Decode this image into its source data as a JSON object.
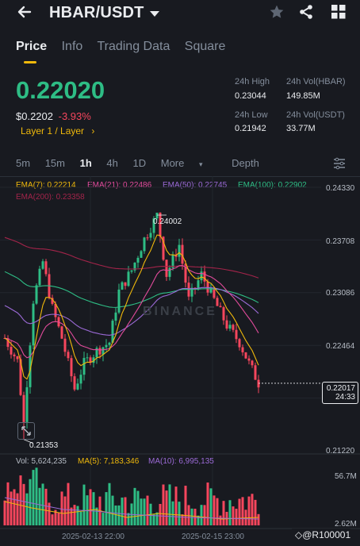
{
  "header": {
    "pair": "HBAR/USDT",
    "back_icon": "back-arrow-icon",
    "dropdown_icon": "caret-down-icon",
    "star_icon": "star-icon",
    "share_icon": "share-icon",
    "grid_icon": "grid-icon"
  },
  "tabs": [
    "Price",
    "Info",
    "Trading Data",
    "Square"
  ],
  "ticker": {
    "last_price": "0.22020",
    "usd_price": "$0.2202",
    "change": "-3.93%",
    "tag": "Layer 1 / Layer",
    "high_label": "24h High",
    "high": "0.23044",
    "low_label": "24h Low",
    "low": "0.21942",
    "vol_hbar_label": "24h Vol(HBAR)",
    "vol_hbar": "149.85M",
    "vol_usdt_label": "24h Vol(USDT)",
    "vol_usdt": "33.77M"
  },
  "timeframes": [
    "5m",
    "15m",
    "1h",
    "4h",
    "1D",
    "More",
    "Depth"
  ],
  "selected_timeframe": "1h",
  "ema_labels": {
    "ema7": "EMA(7): 0.22214",
    "ema21": "EMA(21): 0.22486",
    "ema50": "EMA(50): 0.22745",
    "ema100": "EMA(100): 0.22902",
    "ema200": "EMA(200): 0.23358"
  },
  "price_axis": [
    "0.24330",
    "0.23708",
    "0.23086",
    "0.22464",
    "0.21220"
  ],
  "current_price_tag": {
    "price": "0.22017",
    "countdown": "24:33"
  },
  "annotations": {
    "high": "0.24002",
    "low": "0.21353"
  },
  "volume": {
    "vol": "Vol: 5,624,235",
    "ma5": "MA(5): 7,183,346",
    "ma10": "MA(10): 6,995,135",
    "max": "56.7M",
    "min": "2.62M"
  },
  "dates": [
    "2025-02-13 22:00",
    "2025-02-15 23:00"
  ],
  "watermark": "BINANCE",
  "footer_tag": "@R100001",
  "colors": {
    "up": "#2ebd85",
    "down": "#f6465d",
    "accent": "#f0b90b",
    "ema7": "#f0b90b",
    "ema21": "#e14b9b",
    "ema50": "#9b6ad6",
    "ema100": "#2ebd85",
    "ema200": "#a3244a"
  },
  "chart_data": {
    "type": "candlestick",
    "interval": "1h",
    "ylim": [
      0.2122,
      0.2433
    ],
    "candle_count": 80,
    "annotated_high": 0.24002,
    "annotated_low": 0.21353,
    "last": 0.22017
  }
}
